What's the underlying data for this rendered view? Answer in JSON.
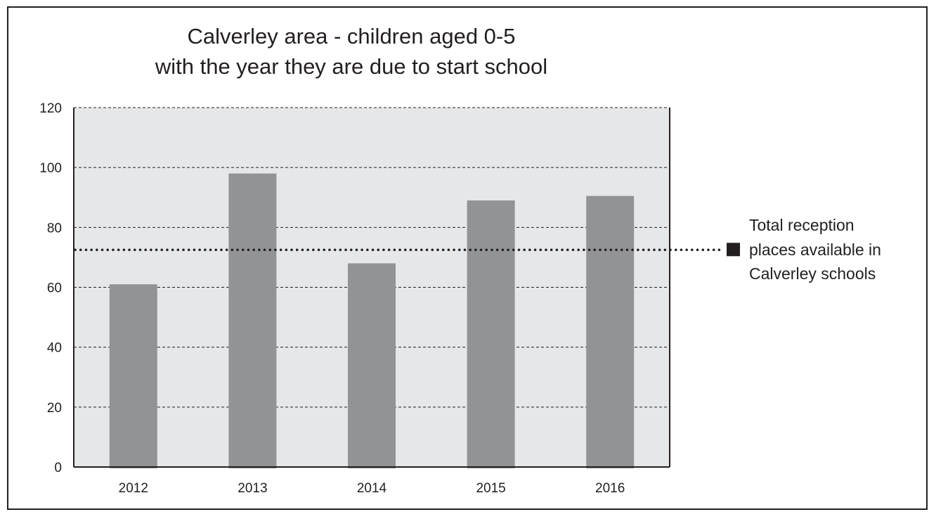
{
  "chart_data": {
    "type": "bar",
    "title_lines": [
      "Calverley area - children aged 0-5",
      "with the year they are due to start school"
    ],
    "xlabel": "",
    "ylabel": "",
    "categories": [
      "2012",
      "2013",
      "2014",
      "2015",
      "2016"
    ],
    "values": [
      61,
      98,
      68,
      89,
      90.5
    ],
    "ylim": [
      0,
      120
    ],
    "yticks": [
      0,
      20,
      40,
      60,
      80,
      100,
      120
    ],
    "grid": "horizontal-dashed",
    "reference_line": {
      "value": 72.5,
      "style": "dotted",
      "label_lines": [
        "Total reception",
        "places available in",
        "Calverley schools"
      ]
    },
    "colors": {
      "bar": "#929397",
      "plot_background": "#e6e7e8",
      "text": "#231f20",
      "grid": "#231f20"
    }
  }
}
